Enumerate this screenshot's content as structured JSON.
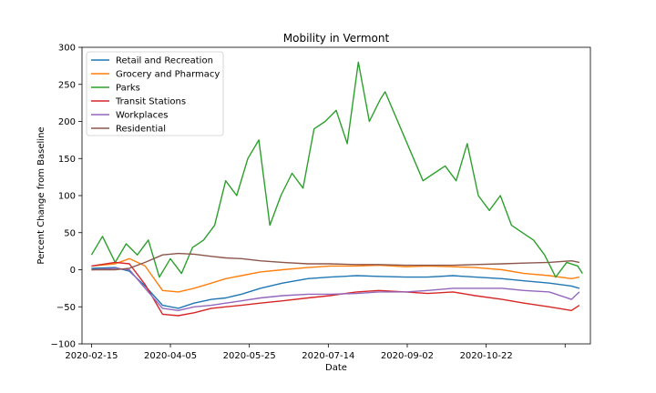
{
  "chart_data": {
    "type": "line",
    "title": "Mobility in Vermont",
    "xlabel": "Date",
    "ylabel": "Percent Change from Baseline",
    "xlim": [
      "2020-02-09",
      "2020-12-27"
    ],
    "ylim": [
      -100,
      300
    ],
    "yticks": [
      -100,
      -50,
      0,
      50,
      100,
      150,
      200,
      250,
      300
    ],
    "xticks": [
      "2020-02-15",
      "2020-04-05",
      "2020-05-25",
      "2020-07-14",
      "2020-09-02",
      "2020-10-22",
      ""
    ],
    "grid": false,
    "legend_position": "upper left",
    "series": [
      {
        "name": "Retail and Recreation",
        "color": "#1f77b4",
        "x": [
          "2020-02-15",
          "2020-03-01",
          "2020-03-10",
          "2020-03-20",
          "2020-03-31",
          "2020-04-10",
          "2020-04-20",
          "2020-05-01",
          "2020-05-10",
          "2020-05-20",
          "2020-06-01",
          "2020-06-15",
          "2020-07-01",
          "2020-07-15",
          "2020-08-01",
          "2020-08-15",
          "2020-09-01",
          "2020-09-15",
          "2020-10-01",
          "2020-10-15",
          "2020-11-01",
          "2020-11-15",
          "2020-12-01",
          "2020-12-15",
          "2020-12-20"
        ],
        "values": [
          2,
          3,
          -2,
          -22,
          -48,
          -52,
          -45,
          -40,
          -38,
          -33,
          -25,
          -18,
          -12,
          -10,
          -8,
          -9,
          -10,
          -10,
          -8,
          -10,
          -12,
          -15,
          -18,
          -22,
          -25
        ]
      },
      {
        "name": "Grocery and Pharmacy",
        "color": "#ff7f0e",
        "x": [
          "2020-02-15",
          "2020-03-01",
          "2020-03-10",
          "2020-03-20",
          "2020-03-31",
          "2020-04-10",
          "2020-04-20",
          "2020-05-01",
          "2020-05-10",
          "2020-05-20",
          "2020-06-01",
          "2020-06-15",
          "2020-07-01",
          "2020-07-15",
          "2020-08-01",
          "2020-08-15",
          "2020-09-01",
          "2020-09-15",
          "2020-10-01",
          "2020-10-15",
          "2020-11-01",
          "2020-11-15",
          "2020-12-01",
          "2020-12-15",
          "2020-12-20"
        ],
        "values": [
          5,
          8,
          15,
          5,
          -28,
          -30,
          -25,
          -18,
          -12,
          -8,
          -3,
          0,
          3,
          5,
          5,
          6,
          4,
          5,
          4,
          3,
          0,
          -5,
          -8,
          -12,
          -10
        ]
      },
      {
        "name": "Parks",
        "color": "#2ca02c",
        "x": [
          "2020-02-15",
          "2020-02-22",
          "2020-03-01",
          "2020-03-08",
          "2020-03-15",
          "2020-03-22",
          "2020-03-29",
          "2020-04-05",
          "2020-04-12",
          "2020-04-19",
          "2020-04-26",
          "2020-05-03",
          "2020-05-10",
          "2020-05-17",
          "2020-05-24",
          "2020-05-31",
          "2020-06-07",
          "2020-06-14",
          "2020-06-21",
          "2020-06-28",
          "2020-07-05",
          "2020-07-12",
          "2020-07-19",
          "2020-07-26",
          "2020-08-02",
          "2020-08-09",
          "2020-08-16",
          "2020-08-19",
          "2020-09-12",
          "2020-09-19",
          "2020-09-26",
          "2020-10-03",
          "2020-10-10",
          "2020-10-17",
          "2020-10-24",
          "2020-10-31",
          "2020-11-07",
          "2020-11-14",
          "2020-11-21",
          "2020-11-28",
          "2020-12-05",
          "2020-12-12",
          "2020-12-19",
          "2020-12-22"
        ],
        "values": [
          20,
          45,
          10,
          35,
          20,
          40,
          -10,
          15,
          -5,
          30,
          40,
          60,
          120,
          100,
          150,
          175,
          60,
          100,
          130,
          110,
          190,
          200,
          215,
          170,
          280,
          200,
          230,
          240,
          120,
          130,
          140,
          120,
          170,
          100,
          80,
          100,
          60,
          50,
          40,
          20,
          -10,
          10,
          5,
          -5
        ]
      },
      {
        "name": "Transit Stations",
        "color": "#d62728",
        "x": [
          "2020-02-15",
          "2020-03-01",
          "2020-03-10",
          "2020-03-20",
          "2020-03-31",
          "2020-04-10",
          "2020-04-20",
          "2020-05-01",
          "2020-05-10",
          "2020-05-20",
          "2020-06-01",
          "2020-06-15",
          "2020-07-01",
          "2020-07-15",
          "2020-08-01",
          "2020-08-15",
          "2020-09-01",
          "2020-09-15",
          "2020-10-01",
          "2020-10-15",
          "2020-11-01",
          "2020-11-15",
          "2020-12-01",
          "2020-12-15",
          "2020-12-20"
        ],
        "values": [
          5,
          10,
          8,
          -20,
          -60,
          -62,
          -58,
          -52,
          -50,
          -48,
          -45,
          -42,
          -38,
          -35,
          -30,
          -28,
          -30,
          -32,
          -30,
          -35,
          -40,
          -45,
          -50,
          -55,
          -48
        ]
      },
      {
        "name": "Workplaces",
        "color": "#9467bd",
        "x": [
          "2020-02-15",
          "2020-03-01",
          "2020-03-10",
          "2020-03-20",
          "2020-03-31",
          "2020-04-10",
          "2020-04-20",
          "2020-05-01",
          "2020-05-10",
          "2020-05-20",
          "2020-06-01",
          "2020-06-15",
          "2020-07-01",
          "2020-07-15",
          "2020-08-01",
          "2020-08-15",
          "2020-09-01",
          "2020-09-15",
          "2020-10-01",
          "2020-10-15",
          "2020-11-01",
          "2020-11-15",
          "2020-12-01",
          "2020-12-15",
          "2020-12-20"
        ],
        "values": [
          0,
          2,
          0,
          -25,
          -52,
          -55,
          -50,
          -48,
          -45,
          -42,
          -38,
          -35,
          -33,
          -33,
          -32,
          -30,
          -30,
          -28,
          -25,
          -25,
          -25,
          -28,
          -30,
          -40,
          -30
        ]
      },
      {
        "name": "Residential",
        "color": "#8c564b",
        "x": [
          "2020-02-15",
          "2020-03-01",
          "2020-03-10",
          "2020-03-20",
          "2020-03-31",
          "2020-04-10",
          "2020-04-20",
          "2020-05-01",
          "2020-05-10",
          "2020-05-20",
          "2020-06-01",
          "2020-06-15",
          "2020-07-01",
          "2020-07-15",
          "2020-08-01",
          "2020-08-15",
          "2020-09-01",
          "2020-09-15",
          "2020-10-01",
          "2020-10-15",
          "2020-11-01",
          "2020-11-15",
          "2020-12-01",
          "2020-12-15",
          "2020-12-20"
        ],
        "values": [
          0,
          0,
          2,
          10,
          20,
          22,
          21,
          18,
          16,
          15,
          12,
          10,
          8,
          8,
          7,
          7,
          6,
          6,
          6,
          7,
          8,
          9,
          10,
          12,
          10
        ]
      }
    ]
  }
}
